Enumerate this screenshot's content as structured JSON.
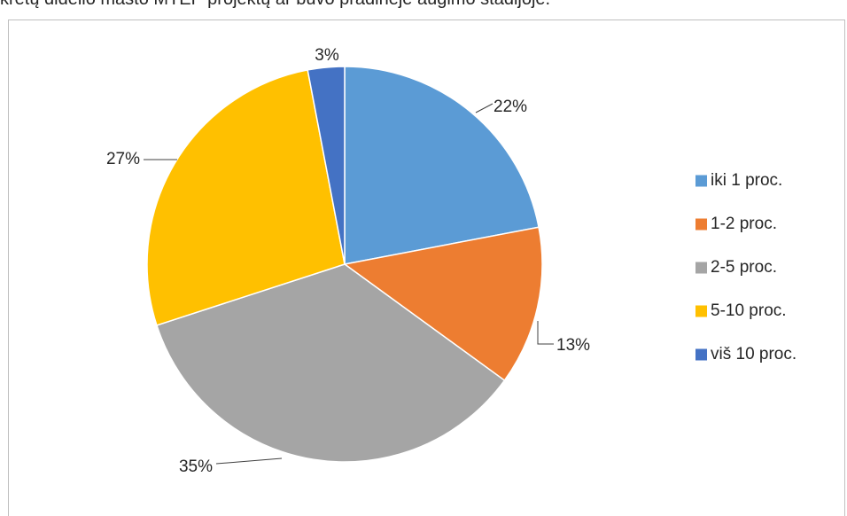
{
  "caption": "kretų didelio masto MTEP projektų ar buvo pradinėje augimo stadijoje.",
  "chart_data": {
    "type": "pie",
    "title": "",
    "start_angle_deg": 0,
    "direction": "clockwise",
    "legend_position": "right",
    "categories": [
      "iki 1 proc.",
      "1-2 proc.",
      "2-5 proc.",
      "5-10 proc.",
      "viš 10  proc."
    ],
    "values": [
      22,
      13,
      35,
      27,
      3
    ],
    "data_labels": [
      "22%",
      "13%",
      "35%",
      "27%",
      "3%"
    ],
    "colors": [
      "#5B9BD5",
      "#ED7D31",
      "#A5A5A5",
      "#FFC000",
      "#4472C4"
    ]
  }
}
